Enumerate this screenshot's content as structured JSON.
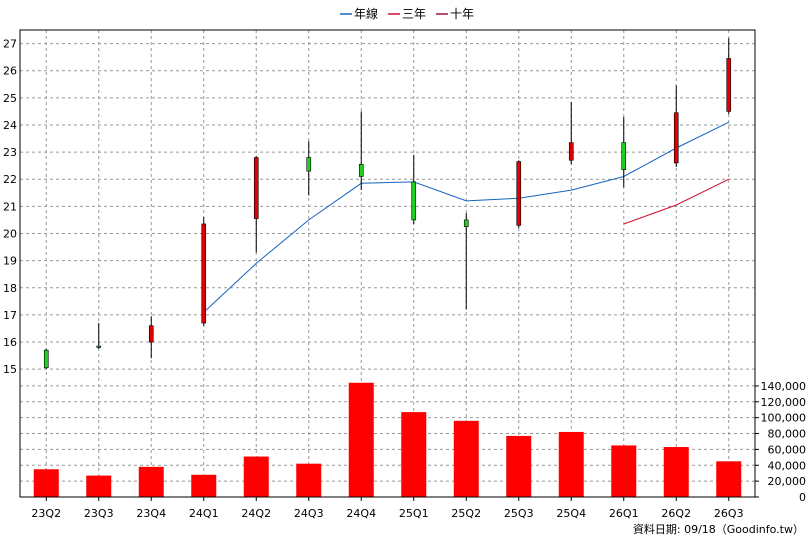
{
  "chart_data": {
    "type": "candlestick+bar",
    "legend": [
      {
        "label": "年線",
        "color": "#1565c0"
      },
      {
        "label": "三年",
        "color": "#d01030"
      },
      {
        "label": "十年",
        "color": "#a0104a"
      }
    ],
    "categories": [
      "23Q2",
      "23Q3",
      "23Q4",
      "24Q1",
      "24Q2",
      "24Q3",
      "24Q4",
      "25Q1",
      "25Q2",
      "25Q3",
      "25Q4",
      "26Q1",
      "26Q2",
      "26Q3"
    ],
    "price_axis": {
      "ylim": [
        14.6,
        27.5
      ],
      "ticks": [
        15,
        16,
        17,
        18,
        19,
        20,
        21,
        22,
        23,
        24,
        25,
        26,
        27
      ]
    },
    "volume_axis": {
      "ylim": [
        0,
        150000
      ],
      "ticks": [
        0,
        20000,
        40000,
        60000,
        80000,
        100000,
        120000,
        140000
      ],
      "tick_labels": [
        "0",
        "20,000",
        "40,000",
        "60,000",
        "80,000",
        "100,000",
        "120,000",
        "140,000"
      ]
    },
    "candles": [
      {
        "open": 15.7,
        "close": 15.05,
        "high": 15.75,
        "low": 15.0
      },
      {
        "open": 15.85,
        "close": 15.8,
        "high": 16.7,
        "low": 15.75
      },
      {
        "open": 16.0,
        "close": 16.6,
        "high": 16.95,
        "low": 15.4
      },
      {
        "open": 16.7,
        "close": 20.35,
        "high": 20.6,
        "low": 16.6
      },
      {
        "open": 20.55,
        "close": 22.8,
        "high": 22.85,
        "low": 19.3
      },
      {
        "open": 22.8,
        "close": 22.3,
        "high": 23.4,
        "low": 21.4
      },
      {
        "open": 22.55,
        "close": 22.1,
        "high": 24.5,
        "low": 21.6
      },
      {
        "open": 21.9,
        "close": 20.5,
        "high": 22.9,
        "low": 20.35
      },
      {
        "open": 20.5,
        "close": 20.25,
        "high": 20.75,
        "low": 17.2
      },
      {
        "open": 20.3,
        "close": 22.65,
        "high": 22.7,
        "low": 20.2
      },
      {
        "open": 22.7,
        "close": 23.35,
        "high": 24.85,
        "low": 22.55
      },
      {
        "open": 23.35,
        "close": 22.35,
        "high": 24.3,
        "low": 21.7
      },
      {
        "open": 22.6,
        "close": 24.45,
        "high": 25.45,
        "low": 22.45
      },
      {
        "open": 24.5,
        "close": 26.45,
        "high": 27.2,
        "low": 24.4
      }
    ],
    "ma_lines": [
      {
        "name": "年線",
        "color": "#1565c0",
        "values": [
          null,
          null,
          null,
          17.1,
          18.9,
          20.5,
          21.85,
          21.9,
          21.2,
          21.3,
          21.6,
          22.1,
          23.15,
          24.1
        ]
      },
      {
        "name": "三年",
        "color": "#d01030",
        "values": [
          null,
          null,
          null,
          null,
          null,
          null,
          null,
          null,
          null,
          null,
          null,
          20.35,
          21.05,
          22.0
        ]
      }
    ],
    "volume": [
      35000,
      27000,
      38000,
      28000,
      51000,
      42000,
      144000,
      107000,
      96000,
      77000,
      82000,
      65000,
      63000,
      45000
    ]
  },
  "footer": "資料日期: 09/18（Goodinfo.tw）",
  "colors": {
    "up": "#e00000",
    "down": "#20d020",
    "volume": "#ff0000",
    "grid": "#999999"
  }
}
